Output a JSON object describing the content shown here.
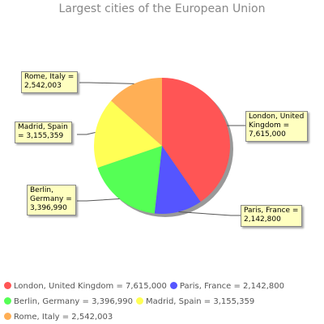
{
  "chart_data": {
    "type": "pie",
    "title": "Largest cities of the European Union",
    "slices": [
      {
        "name": "London, United Kingdom",
        "value": 7615000,
        "color": "#ff5555",
        "label": "London, United\nKingdom =\n7,615,000",
        "legend": "London, United Kingdom = 7,615,000"
      },
      {
        "name": "Paris, France",
        "value": 2142800,
        "color": "#5555ff",
        "label": "Paris, France =\n2,142,800",
        "legend": "Paris, France = 2,142,800"
      },
      {
        "name": "Berlin, Germany",
        "value": 3396990,
        "color": "#55ff55",
        "label": "Berlin,\nGermany =\n3,396,990",
        "legend": "Berlin, Germany = 3,396,990"
      },
      {
        "name": "Madrid, Spain",
        "value": 3155359,
        "color": "#ffff55",
        "label": "Madrid, Spain\n= 3,155,359",
        "legend": "Madrid, Spain = 3,155,359"
      },
      {
        "name": "Rome, Italy",
        "value": 2542003,
        "color": "#ffaf55",
        "label": "Rome, Italy =\n2,542,003",
        "legend": "Rome, Italy = 2,542,003"
      }
    ],
    "legend_position": "bottom"
  }
}
